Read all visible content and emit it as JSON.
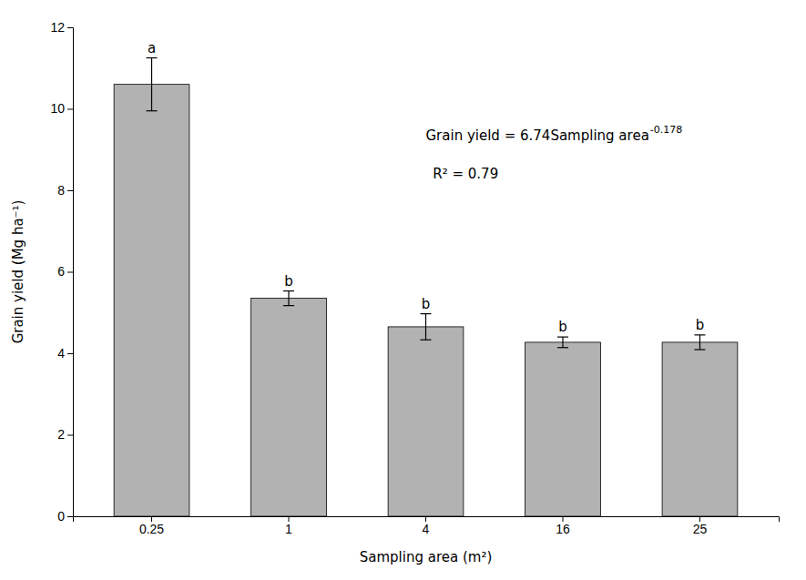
{
  "chart_data": {
    "type": "bar",
    "xlabel": "Sampling area (m²)",
    "ylabel": "Grain yield (Mg ha⁻¹)",
    "categories": [
      "0.25",
      "1",
      "4",
      "16",
      "25"
    ],
    "values": [
      10.6,
      5.35,
      4.65,
      4.27,
      4.27
    ],
    "errors": [
      0.65,
      0.18,
      0.32,
      0.13,
      0.18
    ],
    "sig_labels": [
      "a",
      "b",
      "b",
      "b",
      "b"
    ],
    "color": "#b2b2b2",
    "ylim": [
      0,
      12
    ],
    "yticks": [
      0,
      2,
      4,
      6,
      8,
      10,
      12
    ],
    "grid": false,
    "annotations": [
      {
        "text": "Grain yield = 6.74Sampling area",
        "superscript": "-0.178"
      },
      {
        "text": "R² = 0.79"
      }
    ]
  }
}
